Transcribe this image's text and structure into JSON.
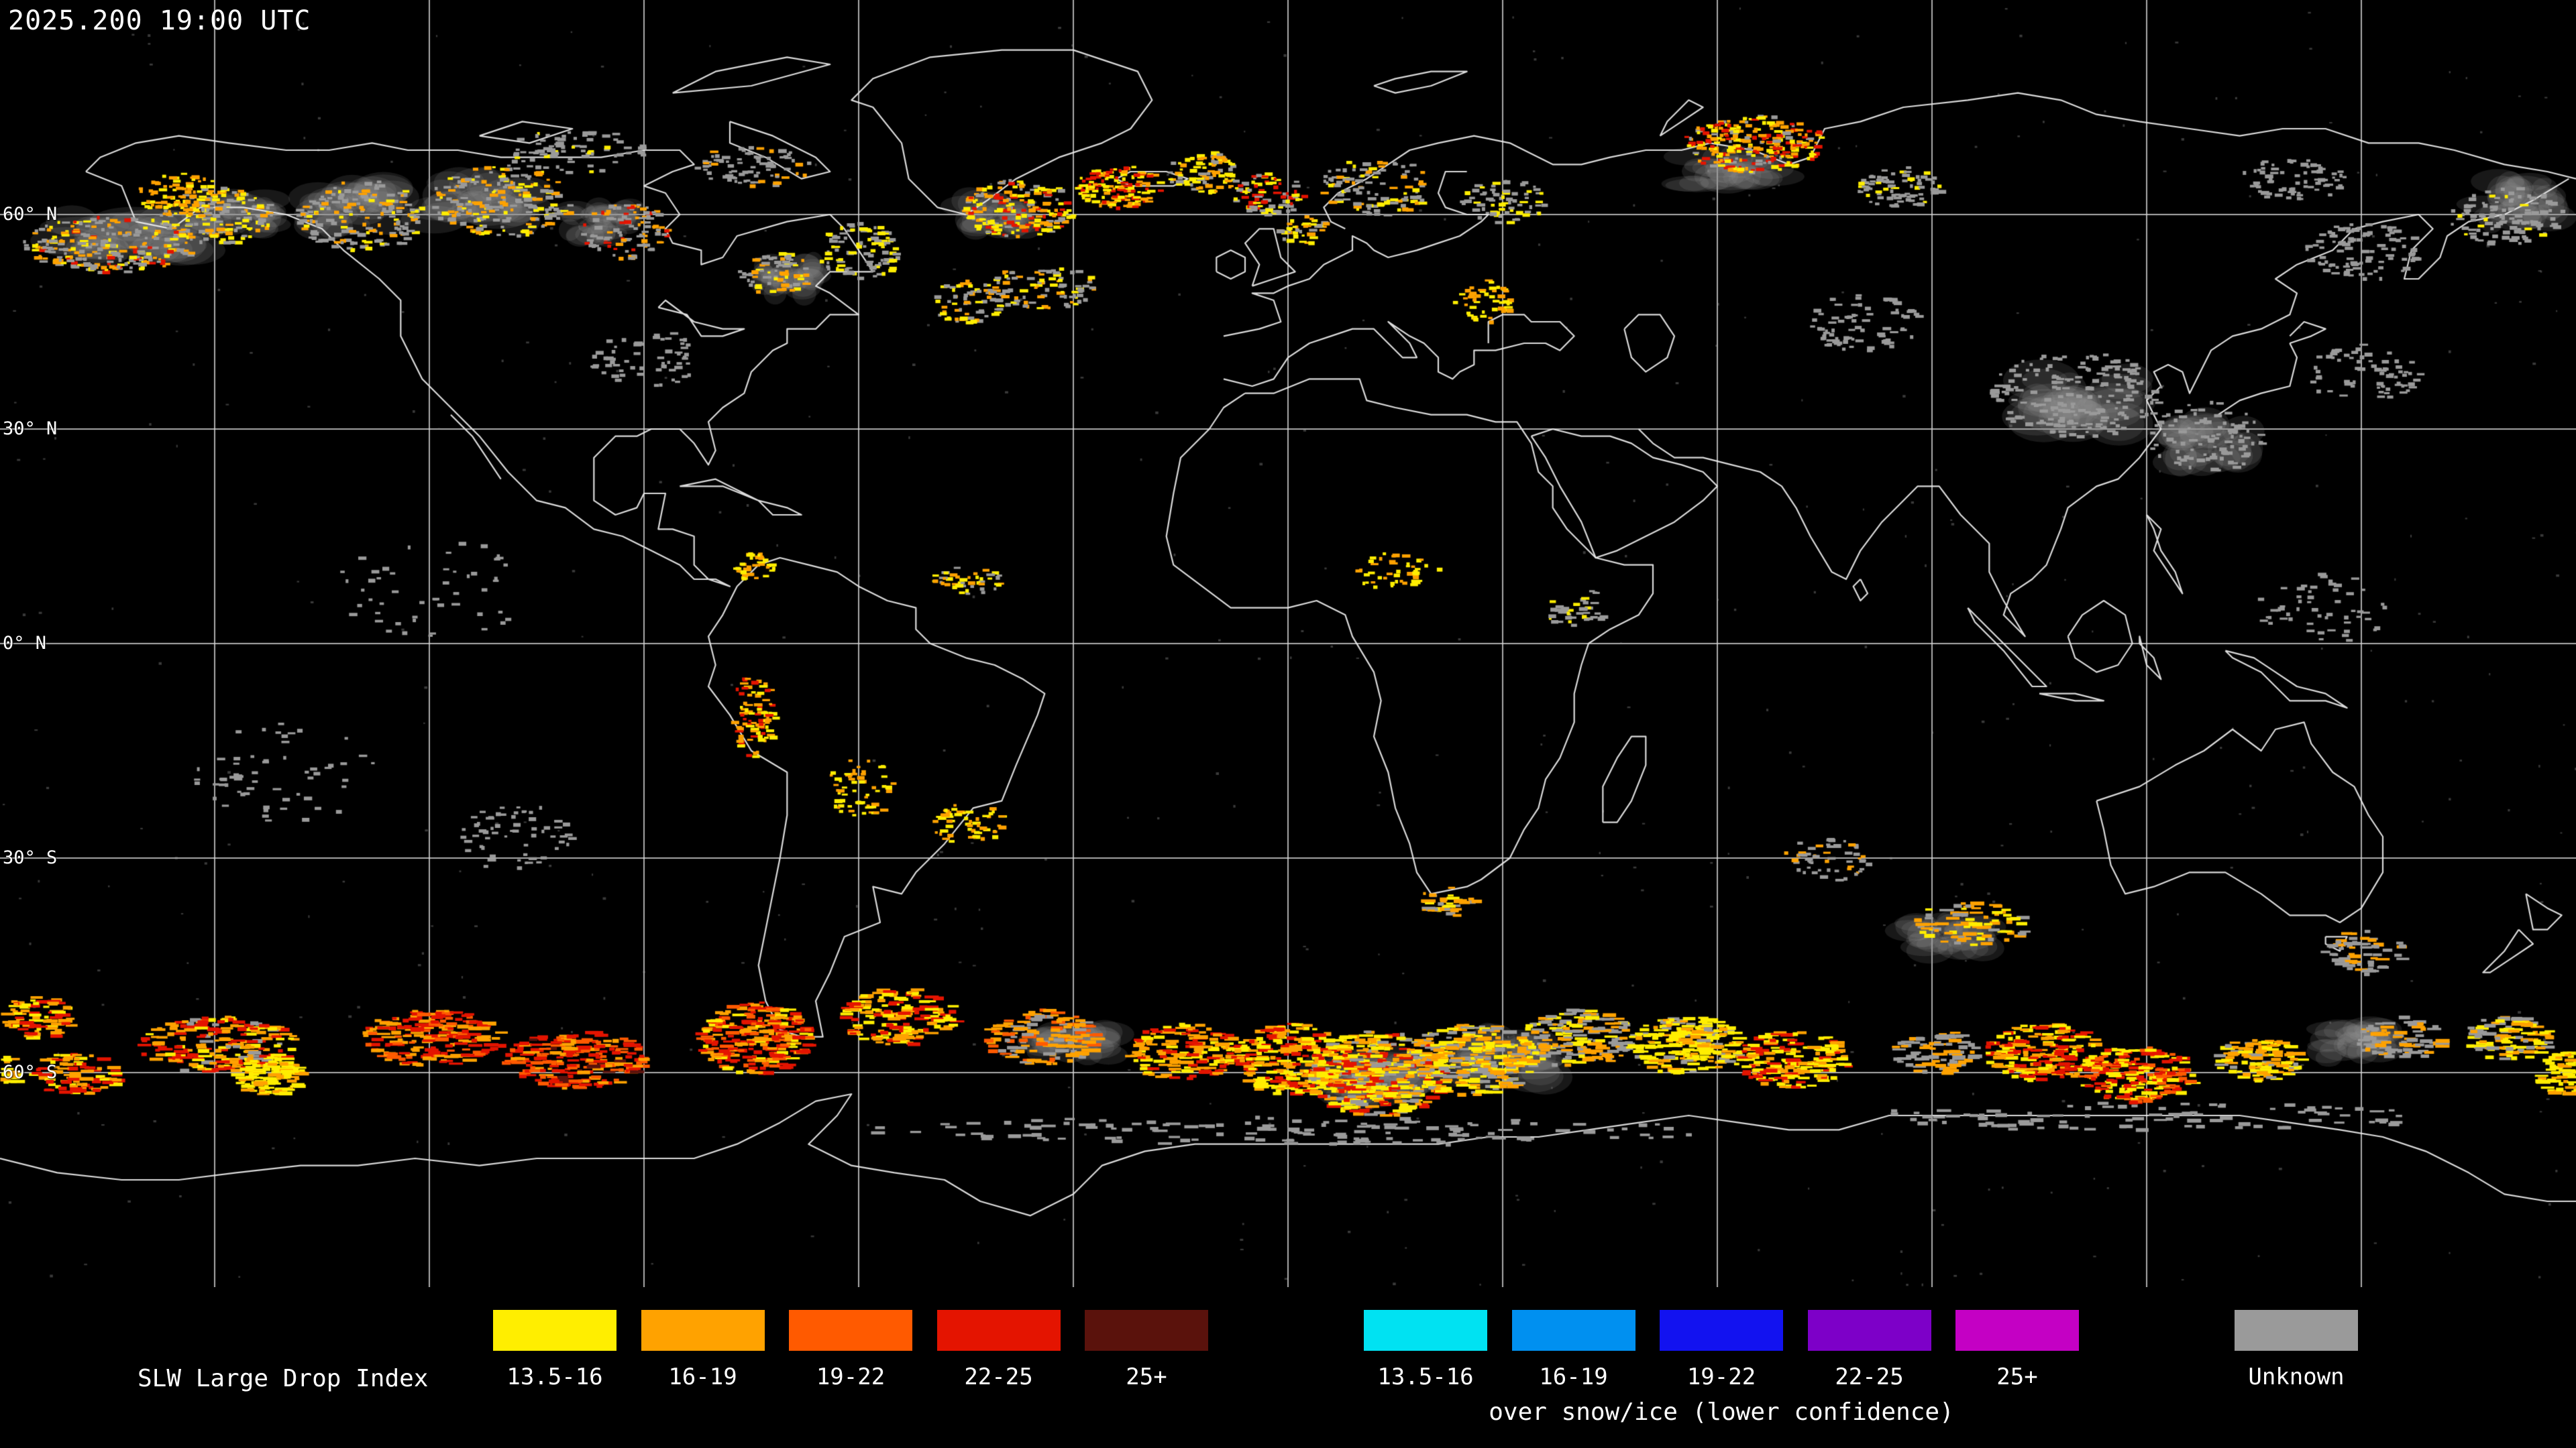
{
  "header": {
    "timestamp": "2025.200 19:00 UTC"
  },
  "map": {
    "projection": "equirectangular",
    "grid_spacing_deg": 30,
    "lat_labels": [
      {
        "text": "60° N",
        "lat": 60
      },
      {
        "text": "30° N",
        "lat": 30
      },
      {
        "text": "0° N",
        "lat": 0
      },
      {
        "text": "30° S",
        "lat": -30
      },
      {
        "text": "60° S",
        "lat": -60
      }
    ],
    "palette": {
      "yellow": "#ffee00",
      "orange": "#ffa200",
      "deep_orange": "#ff5a00",
      "red": "#e41400",
      "maroon": "#5a120c",
      "cyan": "#00e2f2",
      "blue_light": "#0090f0",
      "blue": "#1212f0",
      "purple": "#7d00c8",
      "magenta": "#c400c4",
      "unknown": "#9a9a9a"
    },
    "gray_patches": [
      {
        "lon": -162,
        "lat": 57,
        "rx": 12,
        "ry": 4
      },
      {
        "lon": -147,
        "lat": 60,
        "rx": 7,
        "ry": 3
      },
      {
        "lon": -131,
        "lat": 61,
        "rx": 8,
        "ry": 4
      },
      {
        "lon": -113,
        "lat": 62,
        "rx": 9,
        "ry": 4
      },
      {
        "lon": -96,
        "lat": 59,
        "rx": 6,
        "ry": 3
      },
      {
        "lon": -70,
        "lat": 51,
        "rx": 5,
        "ry": 3
      },
      {
        "lon": -41,
        "lat": 60,
        "rx": 6,
        "ry": 3
      },
      {
        "lon": 62,
        "lat": 66,
        "rx": 8,
        "ry": 3
      },
      {
        "lon": 110,
        "lat": 34,
        "rx": 10,
        "ry": 5
      },
      {
        "lon": 129,
        "lat": 28,
        "rx": 7,
        "ry": 4
      },
      {
        "lon": 12,
        "lat": -61,
        "rx": 9,
        "ry": 4
      },
      {
        "lon": 30,
        "lat": -58,
        "rx": 8,
        "ry": 4
      },
      {
        "lon": -30,
        "lat": -56,
        "rx": 7,
        "ry": 3
      },
      {
        "lon": 150,
        "lat": -56,
        "rx": 7,
        "ry": 3
      },
      {
        "lon": 92,
        "lat": -41,
        "rx": 7,
        "ry": 3
      },
      {
        "lon": 172,
        "lat": 62,
        "rx": 7,
        "ry": 4
      }
    ],
    "clusters": [
      {
        "lon": -165,
        "lat": 56,
        "rx": 12,
        "ry": 4,
        "n": 240,
        "mix": {
          "unknown": 45,
          "orange": 25,
          "yellow": 20,
          "red": 10
        }
      },
      {
        "lon": -150,
        "lat": 60,
        "rx": 8,
        "ry": 4,
        "n": 150,
        "mix": {
          "unknown": 50,
          "yellow": 25,
          "orange": 25
        }
      },
      {
        "lon": -155,
        "lat": 63,
        "rx": 6,
        "ry": 3,
        "n": 80,
        "mix": {
          "yellow": 50,
          "orange": 50
        }
      },
      {
        "lon": -130,
        "lat": 60,
        "rx": 9,
        "ry": 5,
        "n": 180,
        "mix": {
          "unknown": 65,
          "orange": 20,
          "yellow": 15
        }
      },
      {
        "lon": -110,
        "lat": 62,
        "rx": 10,
        "ry": 5,
        "n": 200,
        "mix": {
          "unknown": 50,
          "orange": 30,
          "yellow": 20
        }
      },
      {
        "lon": -93,
        "lat": 58,
        "rx": 6,
        "ry": 4,
        "n": 110,
        "mix": {
          "unknown": 55,
          "orange": 30,
          "red": 15
        }
      },
      {
        "lon": -72,
        "lat": 52,
        "rx": 5,
        "ry": 3,
        "n": 70,
        "mix": {
          "unknown": 50,
          "orange": 30,
          "yellow": 20
        }
      },
      {
        "lon": -60,
        "lat": 55,
        "rx": 6,
        "ry": 4,
        "n": 100,
        "mix": {
          "unknown": 60,
          "yellow": 40
        }
      },
      {
        "lon": -45,
        "lat": 48,
        "rx": 5,
        "ry": 3,
        "n": 70,
        "mix": {
          "unknown": 50,
          "yellow": 30,
          "orange": 20
        }
      },
      {
        "lon": -35,
        "lat": 50,
        "rx": 8,
        "ry": 3,
        "n": 90,
        "mix": {
          "unknown": 60,
          "yellow": 20,
          "orange": 20
        }
      },
      {
        "lon": -38,
        "lat": 61,
        "rx": 8,
        "ry": 4,
        "n": 190,
        "mix": {
          "yellow": 35,
          "orange": 25,
          "red": 20,
          "unknown": 20
        }
      },
      {
        "lon": -24,
        "lat": 64,
        "rx": 6,
        "ry": 3,
        "n": 140,
        "mix": {
          "red": 35,
          "yellow": 35,
          "orange": 30
        }
      },
      {
        "lon": -12,
        "lat": 66,
        "rx": 5,
        "ry": 3,
        "n": 90,
        "mix": {
          "yellow": 40,
          "orange": 30,
          "unknown": 30
        }
      },
      {
        "lon": -3,
        "lat": 63,
        "rx": 5,
        "ry": 3,
        "n": 80,
        "mix": {
          "red": 35,
          "unknown": 35,
          "yellow": 30
        }
      },
      {
        "lon": 2,
        "lat": 58,
        "rx": 4,
        "ry": 2,
        "n": 40,
        "mix": {
          "yellow": 50,
          "orange": 30,
          "unknown": 20
        }
      },
      {
        "lon": 12,
        "lat": 64,
        "rx": 8,
        "ry": 4,
        "n": 110,
        "mix": {
          "unknown": 55,
          "yellow": 25,
          "orange": 20
        }
      },
      {
        "lon": 27,
        "lat": 48,
        "rx": 4,
        "ry": 3,
        "n": 50,
        "mix": {
          "orange": 50,
          "yellow": 50
        }
      },
      {
        "lon": 30,
        "lat": 62,
        "rx": 6,
        "ry": 3,
        "n": 70,
        "mix": {
          "unknown": 70,
          "yellow": 30
        }
      },
      {
        "lon": 65,
        "lat": 70,
        "rx": 10,
        "ry": 4,
        "n": 260,
        "mix": {
          "yellow": 30,
          "orange": 30,
          "red": 25,
          "unknown": 15
        }
      },
      {
        "lon": 85,
        "lat": 64,
        "rx": 6,
        "ry": 3,
        "n": 80,
        "mix": {
          "unknown": 80,
          "yellow": 20
        }
      },
      {
        "lon": -75,
        "lat": 67,
        "rx": 8,
        "ry": 3,
        "n": 80,
        "mix": {
          "unknown": 80,
          "orange": 20
        }
      },
      {
        "lon": -100,
        "lat": 69,
        "rx": 10,
        "ry": 3,
        "n": 80,
        "mix": {
          "unknown": 90,
          "yellow": 10
        }
      },
      {
        "lon": 140,
        "lat": 65,
        "rx": 8,
        "ry": 3,
        "n": 70,
        "mix": {
          "unknown": 100
        }
      },
      {
        "lon": 150,
        "lat": 55,
        "rx": 8,
        "ry": 4,
        "n": 100,
        "mix": {
          "unknown": 100
        }
      },
      {
        "lon": 170,
        "lat": 60,
        "rx": 8,
        "ry": 4,
        "n": 110,
        "mix": {
          "unknown": 90,
          "yellow": 10
        }
      },
      {
        "lon": 80,
        "lat": 45,
        "rx": 8,
        "ry": 4,
        "n": 80,
        "mix": {
          "unknown": 100
        }
      },
      {
        "lon": 110,
        "lat": 35,
        "rx": 12,
        "ry": 6,
        "n": 190,
        "mix": {
          "unknown": 100
        }
      },
      {
        "lon": 128,
        "lat": 29,
        "rx": 8,
        "ry": 5,
        "n": 100,
        "mix": {
          "unknown": 100
        }
      },
      {
        "lon": 150,
        "lat": 38,
        "rx": 8,
        "ry": 4,
        "n": 70,
        "mix": {
          "unknown": 100
        }
      },
      {
        "lon": -90,
        "lat": 40,
        "rx": 8,
        "ry": 4,
        "n": 60,
        "mix": {
          "unknown": 100
        }
      },
      {
        "lon": -75,
        "lat": 11,
        "rx": 3,
        "ry": 2,
        "n": 35,
        "mix": {
          "orange": 50,
          "yellow": 50
        }
      },
      {
        "lon": -45,
        "lat": 9,
        "rx": 5,
        "ry": 2,
        "n": 45,
        "mix": {
          "orange": 40,
          "yellow": 30,
          "unknown": 30
        }
      },
      {
        "lon": -75,
        "lat": -10,
        "rx": 3,
        "ry": 6,
        "n": 90,
        "mix": {
          "orange": 40,
          "red": 30,
          "yellow": 30
        }
      },
      {
        "lon": -60,
        "lat": -20,
        "rx": 5,
        "ry": 4,
        "n": 60,
        "mix": {
          "orange": 50,
          "yellow": 50
        }
      },
      {
        "lon": 15,
        "lat": 10,
        "rx": 6,
        "ry": 3,
        "n": 45,
        "mix": {
          "yellow": 60,
          "orange": 40
        }
      },
      {
        "lon": 40,
        "lat": 5,
        "rx": 4,
        "ry": 3,
        "n": 40,
        "mix": {
          "unknown": 70,
          "yellow": 30
        }
      },
      {
        "lon": -108,
        "lat": -27,
        "rx": 8,
        "ry": 5,
        "n": 60,
        "mix": {
          "unknown": 100
        }
      },
      {
        "lon": -140,
        "lat": -18,
        "rx": 14,
        "ry": 7,
        "n": 60,
        "mix": {
          "unknown": 100
        }
      },
      {
        "lon": -120,
        "lat": 8,
        "rx": 14,
        "ry": 7,
        "n": 50,
        "mix": {
          "unknown": 100
        }
      },
      {
        "lon": 145,
        "lat": 5,
        "rx": 10,
        "ry": 5,
        "n": 55,
        "mix": {
          "unknown": 100
        }
      },
      {
        "lon": -45,
        "lat": -25,
        "rx": 5,
        "ry": 3,
        "n": 55,
        "mix": {
          "orange": 50,
          "yellow": 50
        }
      },
      {
        "lon": 22,
        "lat": -36,
        "rx": 4,
        "ry": 2,
        "n": 40,
        "mix": {
          "orange": 50,
          "yellow": 30,
          "unknown": 20
        }
      },
      {
        "lon": 75,
        "lat": -30,
        "rx": 6,
        "ry": 3,
        "n": 55,
        "mix": {
          "unknown": 60,
          "orange": 40
        }
      },
      {
        "lon": 95,
        "lat": -39,
        "rx": 8,
        "ry": 3,
        "n": 80,
        "mix": {
          "orange": 50,
          "yellow": 30,
          "unknown": 20
        }
      },
      {
        "lon": -175,
        "lat": -52,
        "rx": 5,
        "ry": 3,
        "n": 80,
        "mix": {
          "orange": 50,
          "red": 30,
          "yellow": 20
        }
      },
      {
        "lon": -150,
        "lat": -56,
        "rx": 11,
        "ry": 4,
        "n": 200,
        "mix": {
          "orange": 40,
          "red": 30,
          "yellow": 20,
          "unknown": 10
        }
      },
      {
        "lon": -143,
        "lat": -60,
        "rx": 5,
        "ry": 3,
        "n": 120,
        "mix": {
          "yellow": 75,
          "orange": 25
        }
      },
      {
        "lon": -120,
        "lat": -55,
        "rx": 10,
        "ry": 4,
        "n": 190,
        "mix": {
          "red": 40,
          "orange": 40,
          "deep_orange": 20
        }
      },
      {
        "lon": -100,
        "lat": -58,
        "rx": 10,
        "ry": 4,
        "n": 210,
        "mix": {
          "red": 45,
          "deep_orange": 30,
          "orange": 20,
          "maroon": 5
        }
      },
      {
        "lon": -75,
        "lat": -55,
        "rx": 8,
        "ry": 5,
        "n": 250,
        "mix": {
          "red": 40,
          "orange": 30,
          "deep_orange": 20,
          "yellow": 10
        }
      },
      {
        "lon": -55,
        "lat": -52,
        "rx": 8,
        "ry": 4,
        "n": 160,
        "mix": {
          "orange": 40,
          "red": 30,
          "yellow": 30
        }
      },
      {
        "lon": -35,
        "lat": -55,
        "rx": 8,
        "ry": 4,
        "n": 140,
        "mix": {
          "orange": 50,
          "deep_orange": 30,
          "unknown": 20
        }
      },
      {
        "lon": -15,
        "lat": -57,
        "rx": 8,
        "ry": 4,
        "n": 160,
        "mix": {
          "orange": 40,
          "yellow": 30,
          "red": 30
        }
      },
      {
        "lon": 0,
        "lat": -58,
        "rx": 8,
        "ry": 5,
        "n": 240,
        "mix": {
          "yellow": 40,
          "orange": 30,
          "red": 30
        }
      },
      {
        "lon": 12,
        "lat": -60,
        "rx": 10,
        "ry": 6,
        "n": 380,
        "mix": {
          "yellow": 35,
          "orange": 30,
          "red": 20,
          "unknown": 15
        }
      },
      {
        "lon": 25,
        "lat": -58,
        "rx": 9,
        "ry": 5,
        "n": 280,
        "mix": {
          "orange": 40,
          "yellow": 30,
          "unknown": 30
        }
      },
      {
        "lon": 40,
        "lat": -55,
        "rx": 8,
        "ry": 4,
        "n": 170,
        "mix": {
          "unknown": 50,
          "orange": 30,
          "yellow": 20
        }
      },
      {
        "lon": 55,
        "lat": -56,
        "rx": 8,
        "ry": 4,
        "n": 210,
        "mix": {
          "yellow": 60,
          "orange": 30,
          "unknown": 10
        }
      },
      {
        "lon": 70,
        "lat": -58,
        "rx": 8,
        "ry": 4,
        "n": 180,
        "mix": {
          "yellow": 50,
          "orange": 30,
          "red": 20
        }
      },
      {
        "lon": 90,
        "lat": -57,
        "rx": 6,
        "ry": 3,
        "n": 80,
        "mix": {
          "unknown": 60,
          "orange": 40
        }
      },
      {
        "lon": 105,
        "lat": -57,
        "rx": 8,
        "ry": 4,
        "n": 190,
        "mix": {
          "red": 40,
          "orange": 30,
          "yellow": 30
        }
      },
      {
        "lon": 118,
        "lat": -60,
        "rx": 8,
        "ry": 4,
        "n": 210,
        "mix": {
          "yellow": 40,
          "red": 30,
          "deep_orange": 30
        }
      },
      {
        "lon": 135,
        "lat": -58,
        "rx": 6,
        "ry": 3,
        "n": 100,
        "mix": {
          "orange": 50,
          "yellow": 30,
          "unknown": 20
        }
      },
      {
        "lon": 150,
        "lat": -43,
        "rx": 6,
        "ry": 3,
        "n": 60,
        "mix": {
          "unknown": 70,
          "orange": 30
        }
      },
      {
        "lon": 155,
        "lat": -55,
        "rx": 6,
        "ry": 3,
        "n": 80,
        "mix": {
          "unknown": 60,
          "orange": 40
        }
      },
      {
        "lon": 170,
        "lat": -55,
        "rx": 6,
        "ry": 3,
        "n": 100,
        "mix": {
          "orange": 40,
          "yellow": 30,
          "unknown": 30
        }
      },
      {
        "lon": 178,
        "lat": -60,
        "rx": 4,
        "ry": 3,
        "n": 80,
        "mix": {
          "yellow": 60,
          "orange": 40
        }
      },
      {
        "lon": -170,
        "lat": -60,
        "rx": 6,
        "ry": 3,
        "n": 90,
        "mix": {
          "orange": 50,
          "red": 30,
          "yellow": 20
        }
      },
      {
        "lon": 0,
        "lat": -68,
        "rx": 60,
        "ry": 2,
        "n": 140,
        "mix": {
          "unknown": 100
        }
      },
      {
        "lon": 120,
        "lat": -66,
        "rx": 40,
        "ry": 2,
        "n": 90,
        "mix": {
          "unknown": 100
        }
      }
    ]
  },
  "legend": {
    "title": "SLW Large Drop Index",
    "primary": {
      "items": [
        {
          "label": "13.5-16",
          "color_key": "yellow"
        },
        {
          "label": "16-19",
          "color_key": "orange"
        },
        {
          "label": "19-22",
          "color_key": "deep_orange"
        },
        {
          "label": "22-25",
          "color_key": "red"
        },
        {
          "label": "25+",
          "color_key": "maroon"
        }
      ]
    },
    "snow_ice": {
      "items": [
        {
          "label": "13.5-16",
          "color_key": "cyan"
        },
        {
          "label": "16-19",
          "color_key": "blue_light"
        },
        {
          "label": "19-22",
          "color_key": "blue"
        },
        {
          "label": "22-25",
          "color_key": "purple"
        },
        {
          "label": "25+",
          "color_key": "magenta"
        }
      ],
      "caption": "over snow/ice (lower confidence)"
    },
    "unknown": {
      "label": "Unknown",
      "color_key": "unknown"
    }
  }
}
